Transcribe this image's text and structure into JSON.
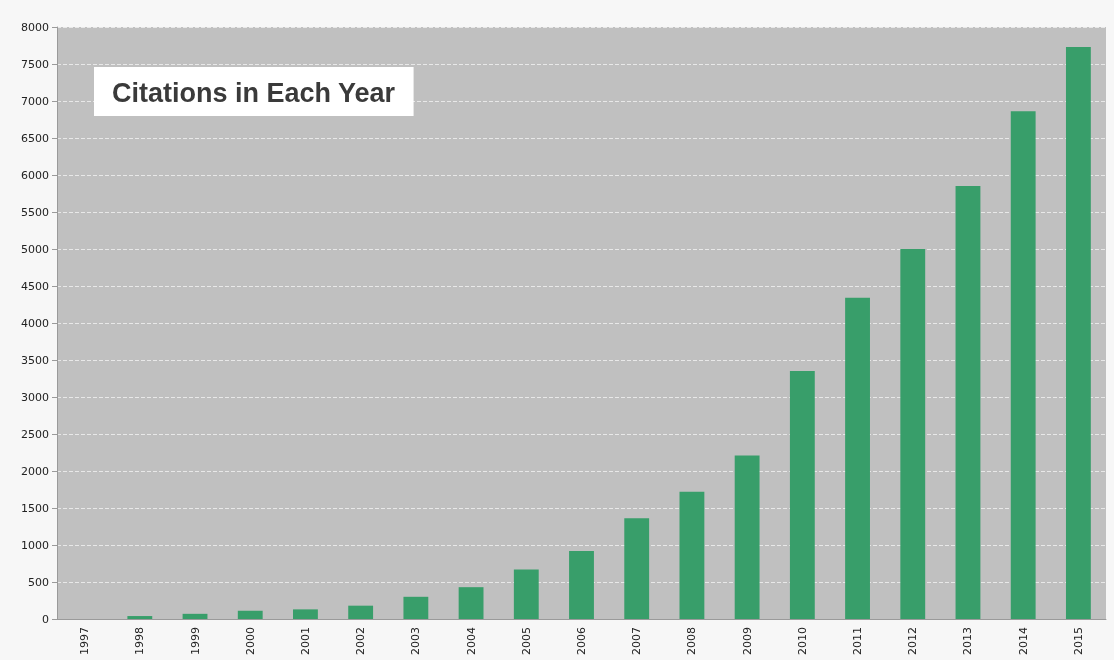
{
  "chart_data": {
    "type": "bar",
    "title": "Citations in Each Year",
    "categories": [
      "1997",
      "1998",
      "1999",
      "2000",
      "2001",
      "2002",
      "2003",
      "2004",
      "2005",
      "2006",
      "2007",
      "2008",
      "2009",
      "2010",
      "2011",
      "2012",
      "2013",
      "2014",
      "2015"
    ],
    "values": [
      0,
      40,
      70,
      110,
      130,
      180,
      300,
      430,
      670,
      920,
      1360,
      1720,
      2210,
      3350,
      4340,
      5000,
      5850,
      6860,
      7730
    ],
    "color": "#389e6a",
    "ylim": [
      0,
      8000
    ],
    "yticks": [
      0,
      500,
      1000,
      1500,
      2000,
      2500,
      3000,
      3500,
      4000,
      4500,
      5000,
      5500,
      6000,
      6500,
      7000,
      7500,
      8000
    ],
    "grid": "y"
  }
}
